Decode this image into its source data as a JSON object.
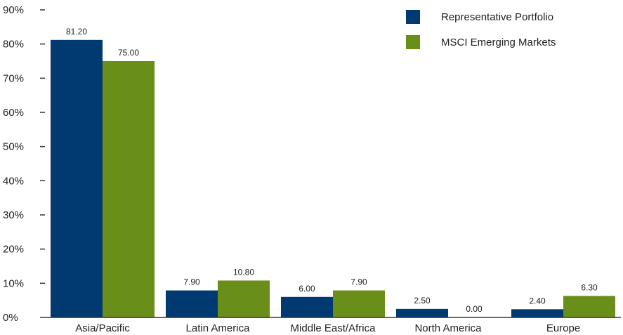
{
  "chart_data": {
    "type": "bar",
    "title": "",
    "xlabel": "",
    "ylabel": "",
    "categories": [
      "Asia/Pacific",
      "Latin America",
      "Middle East/Africa",
      "North America",
      "Europe"
    ],
    "series": [
      {
        "name": "Representative Portfolio",
        "color": "#003a70",
        "values": [
          81.2,
          7.9,
          6.0,
          2.5,
          2.4
        ],
        "labels": [
          "81.20",
          "7.90",
          "6.00",
          "2.50",
          "2.40"
        ]
      },
      {
        "name": "MSCI Emerging Markets",
        "color": "#6a8e1a",
        "values": [
          75.0,
          10.8,
          7.9,
          0.0,
          6.3
        ],
        "labels": [
          "75.00",
          "10.80",
          "7.90",
          "0.00",
          "6.30"
        ]
      }
    ],
    "ylim": [
      0,
      90
    ],
    "yticks": [
      0,
      10,
      20,
      30,
      40,
      50,
      60,
      70,
      80,
      90
    ],
    "ytick_labels": [
      "0%",
      "10%",
      "20%",
      "30%",
      "40%",
      "50%",
      "60%",
      "70%",
      "80%",
      "90%"
    ],
    "grid": false,
    "legend_position": "top-right"
  }
}
